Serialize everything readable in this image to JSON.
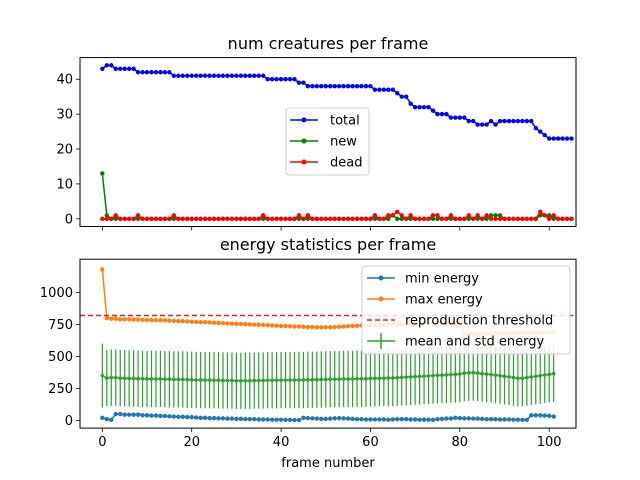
{
  "chart_data": [
    {
      "type": "line",
      "title": "num creatures per frame",
      "xlim": [
        -5,
        106
      ],
      "ylim": [
        -2.2,
        46.2
      ],
      "yticks": [
        0,
        10,
        20,
        30,
        40
      ],
      "xticks": [
        0,
        20,
        40,
        60,
        80,
        100
      ],
      "show_xtick_labels": false,
      "legend_position": "center",
      "series": [
        {
          "name": "total",
          "color": "#0000ff",
          "values": [
            43,
            44,
            44,
            43,
            43,
            43,
            43,
            43,
            42,
            42,
            42,
            42,
            42,
            42,
            42,
            42,
            41,
            41,
            41,
            41,
            41,
            41,
            41,
            41,
            41,
            41,
            41,
            41,
            41,
            41,
            41,
            41,
            41,
            41,
            41,
            41,
            41,
            40,
            40,
            40,
            40,
            40,
            40,
            40,
            39,
            39,
            38,
            38,
            38,
            38,
            38,
            38,
            38,
            38,
            38,
            38,
            38,
            38,
            38,
            38,
            38,
            37,
            37,
            37,
            37,
            37,
            36,
            35,
            35,
            33,
            32,
            32,
            32,
            32,
            31,
            30,
            30,
            30,
            29,
            29,
            29,
            29,
            28,
            28,
            27,
            27,
            27,
            28,
            27,
            28,
            28,
            28,
            28,
            28,
            28,
            28,
            28,
            26,
            25,
            24,
            23,
            23,
            23,
            23,
            23,
            23
          ]
        },
        {
          "name": "new",
          "color": "#008000",
          "values": [
            13,
            1,
            0,
            0,
            0,
            0,
            0,
            0,
            0,
            0,
            0,
            0,
            0,
            0,
            0,
            0,
            0,
            0,
            0,
            0,
            0,
            0,
            0,
            0,
            0,
            0,
            0,
            0,
            0,
            0,
            0,
            0,
            0,
            0,
            0,
            0,
            0,
            0,
            0,
            0,
            0,
            0,
            0,
            0,
            0,
            0,
            0,
            0,
            0,
            0,
            0,
            0,
            0,
            0,
            0,
            0,
            0,
            0,
            0,
            0,
            0,
            0,
            0,
            0,
            0,
            1,
            0,
            0,
            0,
            0,
            0,
            0,
            0,
            0,
            0,
            0,
            0,
            0,
            0,
            0,
            0,
            0,
            0,
            0,
            0,
            0,
            0,
            1,
            1,
            1,
            0,
            0,
            0,
            0,
            0,
            0,
            0,
            0,
            1,
            1,
            1,
            0,
            0,
            0,
            0,
            0
          ]
        },
        {
          "name": "dead",
          "color": "#ff0000",
          "values": [
            0,
            0,
            0,
            1,
            0,
            0,
            0,
            0,
            1,
            0,
            0,
            0,
            0,
            0,
            0,
            0,
            1,
            0,
            0,
            0,
            0,
            0,
            0,
            0,
            0,
            0,
            0,
            0,
            0,
            0,
            0,
            0,
            0,
            0,
            0,
            0,
            1,
            0,
            0,
            0,
            0,
            0,
            0,
            0,
            1,
            0,
            1,
            0,
            0,
            0,
            0,
            0,
            0,
            0,
            0,
            0,
            0,
            0,
            0,
            0,
            0,
            1,
            0,
            0,
            1,
            1,
            2,
            1,
            0,
            1,
            0,
            0,
            0,
            0,
            1,
            1,
            0,
            0,
            1,
            0,
            0,
            0,
            1,
            0,
            1,
            0,
            1,
            0,
            0,
            0,
            0,
            0,
            0,
            0,
            0,
            0,
            0,
            0,
            2,
            1,
            0,
            1,
            0,
            0,
            0,
            0
          ]
        }
      ]
    },
    {
      "type": "line",
      "title": "energy statistics per frame",
      "xlabel": "frame number",
      "xlim": [
        -5,
        106
      ],
      "ylim": [
        -60,
        1260
      ],
      "yticks": [
        0,
        250,
        500,
        750,
        1000
      ],
      "xticks": [
        0,
        20,
        40,
        60,
        80,
        100
      ],
      "legend_position": "upper right",
      "reference_line": {
        "name": "reproduction threshold",
        "y": 820,
        "color": "#d62728"
      },
      "series": [
        {
          "name": "min energy",
          "color": "#1f77b4",
          "values": [
            20,
            10,
            5,
            50,
            50,
            45,
            45,
            45,
            45,
            40,
            40,
            38,
            38,
            35,
            35,
            32,
            30,
            28,
            28,
            26,
            25,
            22,
            20,
            20,
            18,
            18,
            16,
            16,
            14,
            14,
            12,
            12,
            10,
            10,
            10,
            8,
            8,
            8,
            6,
            6,
            6,
            5,
            5,
            3,
            3,
            20,
            18,
            16,
            14,
            12,
            12,
            14,
            16,
            18,
            16,
            14,
            12,
            10,
            10,
            8,
            8,
            8,
            8,
            8,
            6,
            8,
            10,
            10,
            10,
            8,
            8,
            6,
            6,
            6,
            5,
            10,
            12,
            15,
            15,
            20,
            18,
            16,
            16,
            14,
            14,
            12,
            10,
            10,
            10,
            8,
            8,
            8,
            6,
            6,
            5,
            5,
            40,
            40,
            40,
            38,
            36,
            30
          ]
        },
        {
          "name": "max energy",
          "color": "#ff7f0e",
          "values": [
            1180,
            800,
            795,
            795,
            790,
            790,
            790,
            788,
            788,
            786,
            785,
            784,
            784,
            782,
            782,
            780,
            778,
            776,
            776,
            774,
            772,
            770,
            768,
            768,
            766,
            764,
            762,
            760,
            758,
            756,
            755,
            754,
            752,
            750,
            748,
            748,
            746,
            744,
            742,
            740,
            738,
            738,
            736,
            734,
            734,
            732,
            730,
            730,
            728,
            728,
            728,
            728,
            730,
            732,
            734,
            736,
            738,
            740,
            742,
            742,
            744,
            744,
            746,
            748,
            750,
            750,
            750,
            750,
            750,
            752,
            754,
            756,
            758,
            760,
            762,
            764,
            766,
            768,
            770,
            772,
            774,
            676,
            676,
            676,
            676,
            676,
            680,
            680,
            682,
            682,
            682,
            682,
            684,
            684,
            686,
            686,
            686,
            686,
            688,
            688,
            688,
            690
          ]
        },
        {
          "name": "mean and std energy",
          "color": "#2ca02c",
          "error_bars": true,
          "values": [
            350,
            330,
            335,
            335,
            330,
            330,
            328,
            328,
            326,
            326,
            325,
            325,
            324,
            324,
            322,
            322,
            320,
            320,
            320,
            318,
            318,
            316,
            316,
            315,
            315,
            314,
            314,
            312,
            312,
            312,
            310,
            310,
            310,
            310,
            312,
            312,
            312,
            314,
            314,
            314,
            315,
            315,
            315,
            316,
            316,
            316,
            318,
            318,
            318,
            320,
            320,
            322,
            322,
            322,
            324,
            324,
            324,
            326,
            326,
            326,
            328,
            328,
            330,
            330,
            332,
            332,
            334,
            336,
            338,
            340,
            342,
            344,
            346,
            348,
            350,
            352,
            354,
            356,
            358,
            360,
            362,
            370,
            372,
            374,
            370,
            365,
            362,
            358,
            354,
            350,
            345,
            340,
            335,
            330,
            330,
            335,
            340,
            345,
            350,
            355,
            360,
            365
          ],
          "std": [
            250,
            220,
            220,
            220,
            220,
            220,
            220,
            220,
            220,
            220,
            220,
            220,
            220,
            220,
            220,
            220,
            220,
            220,
            220,
            220,
            220,
            220,
            220,
            220,
            220,
            220,
            220,
            220,
            220,
            220,
            220,
            220,
            220,
            220,
            220,
            220,
            220,
            220,
            220,
            220,
            220,
            220,
            220,
            220,
            220,
            220,
            220,
            220,
            220,
            220,
            220,
            220,
            220,
            220,
            220,
            220,
            220,
            220,
            220,
            220,
            220,
            220,
            220,
            220,
            220,
            220,
            220,
            220,
            220,
            220,
            220,
            220,
            220,
            220,
            220,
            220,
            220,
            220,
            220,
            220,
            220,
            220,
            220,
            220,
            220,
            220,
            220,
            220,
            220,
            220,
            220,
            220,
            220,
            220,
            220,
            220,
            220,
            220,
            220,
            220,
            220,
            220
          ]
        }
      ]
    }
  ]
}
